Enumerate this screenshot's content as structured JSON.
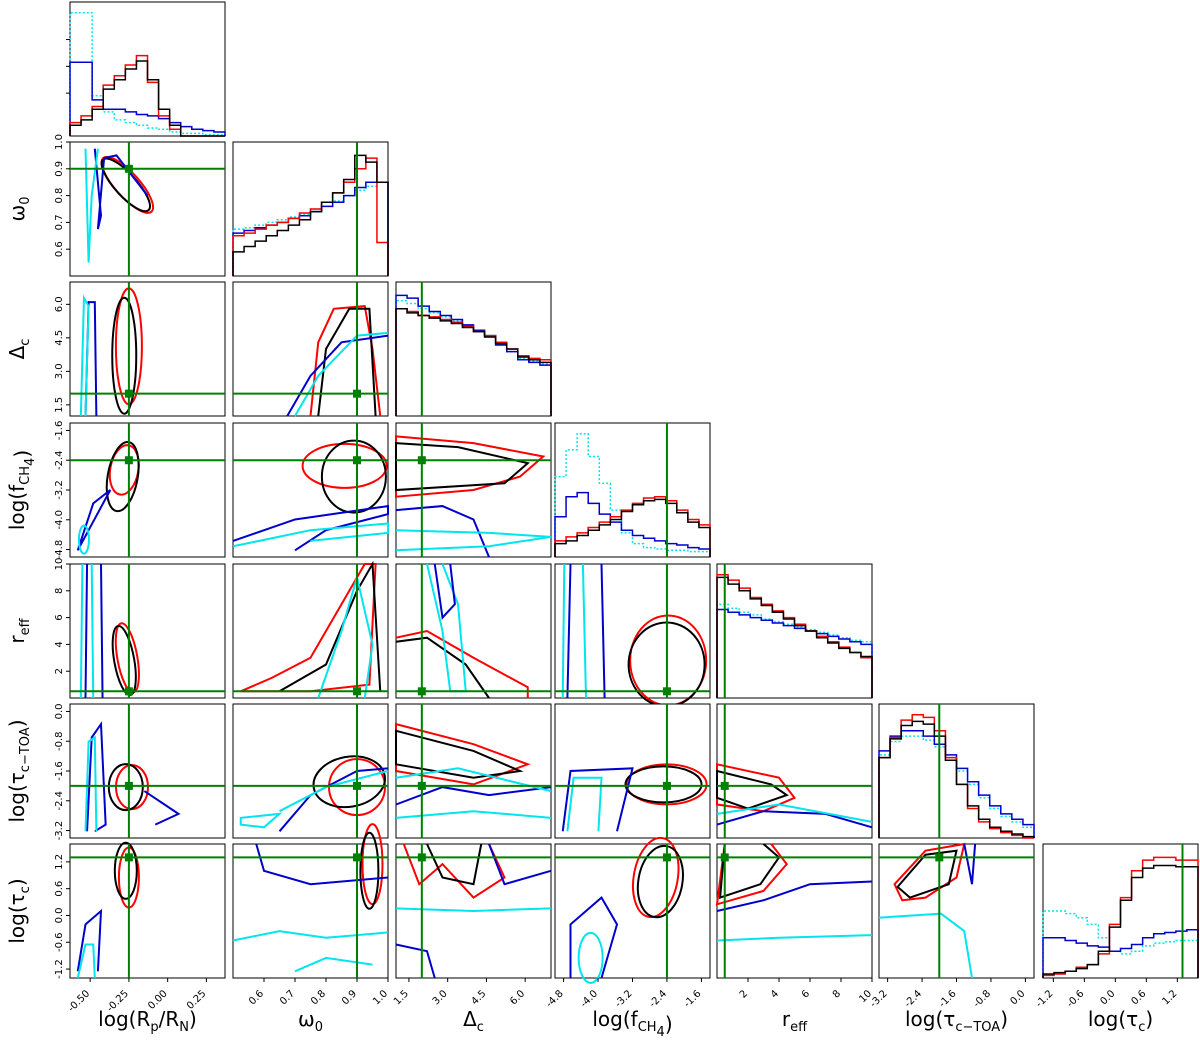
{
  "chart_data": {
    "type": "corner",
    "parameters": [
      {
        "label": "log(R",
        "sub": "p",
        "mid": "/R",
        "sub2": "N",
        "tail": ")",
        "ticks": [
          "-0.50",
          "-0.25",
          "0.00",
          "0.25"
        ],
        "tickvals": [
          -0.5,
          -0.25,
          0.0,
          0.25
        ],
        "range": [
          -0.63,
          0.37
        ],
        "truth": -0.25
      },
      {
        "label": "ω",
        "sub": "0",
        "ticks": [
          "0.6",
          "0.7",
          "0.8",
          "0.9",
          "1.0"
        ],
        "tickvals": [
          0.6,
          0.7,
          0.8,
          0.9,
          1.0
        ],
        "range": [
          0.5,
          1.0
        ],
        "truth": 0.9
      },
      {
        "label": "Δ",
        "sub": "c",
        "ticks": [
          "1.5",
          "3.0",
          "4.5",
          "6.0"
        ],
        "tickvals": [
          1.5,
          3.0,
          4.5,
          6.0
        ],
        "range": [
          1.0,
          7.0
        ],
        "truth": 2.0
      },
      {
        "label": "log(f",
        "sub": "CH",
        "sub2": "4",
        "tail": ")",
        "ticks": [
          "-4.8",
          "-4.0",
          "-3.2",
          "-2.4",
          "-1.6"
        ],
        "tickvals": [
          -4.8,
          -4.0,
          -3.2,
          -2.4,
          -1.6
        ],
        "range": [
          -5.0,
          -1.4
        ],
        "truth": -2.4
      },
      {
        "label": "r",
        "sub": "eff",
        "ticks": [
          "2",
          "4",
          "6",
          "8",
          "10"
        ],
        "tickvals": [
          2,
          4,
          6,
          8,
          10
        ],
        "range": [
          0.0,
          10.0
        ],
        "truth": 0.5
      },
      {
        "label": "log(τ",
        "sub": "c−TOA",
        "tail": ")",
        "ticks": [
          "-3.2",
          "-2.4",
          "-1.6",
          "-0.8",
          "0.0"
        ],
        "tickvals": [
          -3.2,
          -2.4,
          -1.6,
          -0.8,
          0.0
        ],
        "range": [
          -3.4,
          0.2
        ],
        "truth": -2.0
      },
      {
        "label": "log(τ",
        "sub": "c",
        "tail": ")",
        "ticks": [
          "-1.2",
          "-0.6",
          "0.0",
          "0.6",
          "1.2"
        ],
        "tickvals": [
          -1.2,
          -0.6,
          0.0,
          0.6,
          1.2
        ],
        "range": [
          -1.4,
          1.6
        ],
        "truth": 1.3
      }
    ],
    "series": [
      {
        "color": "#ff0000",
        "style": "solid"
      },
      {
        "color": "#000000",
        "style": "solid"
      },
      {
        "color": "#0000cc",
        "style": "solid"
      },
      {
        "color": "#00e5ee",
        "style": "dotted"
      }
    ],
    "truth_color": "#008000",
    "grid": false,
    "legend": "none"
  }
}
